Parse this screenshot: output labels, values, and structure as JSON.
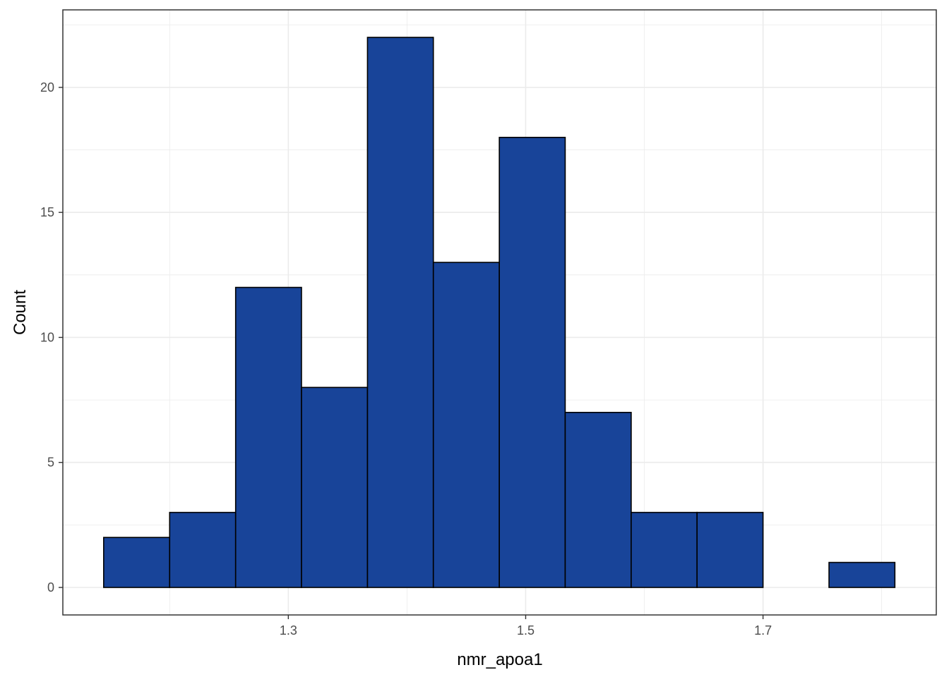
{
  "chart_data": {
    "type": "bar",
    "subtype": "histogram",
    "title": "",
    "xlabel": "nmr_apoa1",
    "ylabel": "Count",
    "bin_edges": [
      1.1444,
      1.2,
      1.2556,
      1.3111,
      1.3667,
      1.4222,
      1.4778,
      1.5333,
      1.5889,
      1.6444,
      1.7,
      1.7556,
      1.8111
    ],
    "bin_centers": [
      1.172,
      1.228,
      1.283,
      1.339,
      1.394,
      1.45,
      1.506,
      1.561,
      1.617,
      1.672,
      1.728,
      1.783
    ],
    "counts": [
      2,
      3,
      12,
      8,
      22,
      13,
      18,
      7,
      3,
      3,
      0,
      1
    ],
    "xlim": [
      1.11,
      1.846
    ],
    "ylim": [
      -1.1,
      23.1
    ],
    "x_ticks": [
      1.3,
      1.5,
      1.7
    ],
    "x_tick_labels": [
      "1.3",
      "1.5",
      "1.7"
    ],
    "y_ticks": [
      0,
      5,
      10,
      15,
      20
    ],
    "y_tick_labels": [
      "0",
      "5",
      "10",
      "15",
      "20"
    ],
    "grid": true,
    "legend": "none",
    "colors": {
      "bar_fill": "#184499",
      "bar_stroke": "#000000",
      "grid": "#ebebeb",
      "panel_border": "#333333"
    }
  }
}
